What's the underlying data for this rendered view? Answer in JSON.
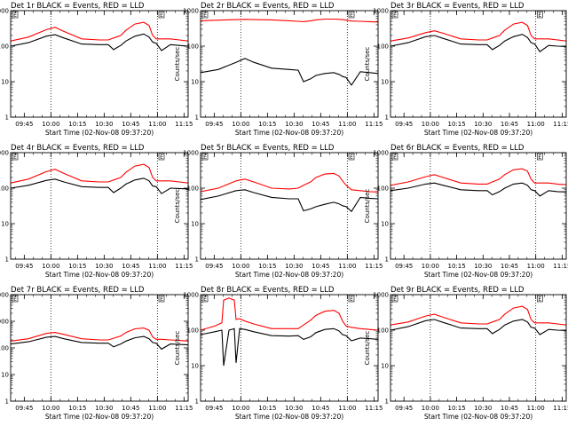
{
  "colors": {
    "events": "#000000",
    "lld": "#ff0000",
    "marker": "#000000"
  },
  "shared": {
    "ylabel": "Counts/sec",
    "xlabel": "Start Time (02-Nov-08 09:37:20)",
    "xticks": [
      "09:45",
      "10:00",
      "10:15",
      "10:30",
      "10:45",
      "11:00",
      "11:15"
    ],
    "xtick_minutes": [
      7.67,
      22.67,
      37.67,
      52.67,
      67.67,
      82.67,
      97.67
    ],
    "xlim_minutes": [
      0,
      100
    ],
    "ylog": true,
    "dotted_lines_minutes": [
      22.67,
      82.67
    ],
    "flag_letter": "E"
  },
  "chart_data": [
    {
      "type": "line",
      "title": "Det 1r BLACK = Events, RED = LLD",
      "ylim": [
        1,
        1000
      ],
      "yticks": [
        "1",
        "10",
        "100",
        "1000"
      ],
      "x": [
        0,
        10,
        20,
        25,
        30,
        40,
        50,
        55,
        58,
        62,
        65,
        70,
        75,
        78,
        80,
        82,
        85,
        90,
        95,
        100
      ],
      "series": [
        {
          "name": "Events",
          "values": [
            100,
            125,
            190,
            210,
            170,
            115,
            110,
            110,
            80,
            105,
            140,
            190,
            220,
            180,
            130,
            120,
            75,
            110,
            105,
            100
          ]
        },
        {
          "name": "LLD",
          "values": [
            140,
            180,
            290,
            340,
            260,
            160,
            150,
            150,
            170,
            200,
            280,
            420,
            470,
            380,
            200,
            160,
            160,
            160,
            150,
            140
          ]
        }
      ]
    },
    {
      "type": "line",
      "title": "Det 2r BLACK = Events, RED = LLD",
      "ylim": [
        1,
        1000
      ],
      "yticks": [
        "1",
        "10",
        "100",
        "1000"
      ],
      "x": [
        0,
        10,
        20,
        25,
        30,
        40,
        50,
        55,
        58,
        62,
        65,
        70,
        75,
        78,
        80,
        82,
        85,
        90,
        95,
        100
      ],
      "series": [
        {
          "name": "Events",
          "values": [
            18,
            22,
            35,
            45,
            35,
            24,
            22,
            21,
            10,
            12,
            15,
            17,
            18,
            16,
            14,
            13,
            8,
            19,
            18,
            17
          ]
        },
        {
          "name": "LLD",
          "values": [
            520,
            540,
            560,
            570,
            560,
            550,
            520,
            500,
            490,
            520,
            550,
            580,
            580,
            570,
            560,
            540,
            510,
            500,
            490,
            480
          ]
        }
      ]
    },
    {
      "type": "line",
      "title": "Det 3r BLACK = Events, RED = LLD",
      "ylim": [
        1,
        1000
      ],
      "yticks": [
        "1",
        "10",
        "100",
        "1000"
      ],
      "x": [
        0,
        10,
        20,
        25,
        30,
        40,
        50,
        55,
        58,
        62,
        65,
        70,
        75,
        78,
        80,
        82,
        85,
        90,
        95,
        100
      ],
      "series": [
        {
          "name": "Events",
          "values": [
            100,
            125,
            185,
            200,
            165,
            115,
            110,
            110,
            80,
            105,
            140,
            185,
            215,
            175,
            125,
            115,
            70,
            105,
            100,
            98
          ]
        },
        {
          "name": "LLD",
          "values": [
            140,
            170,
            240,
            270,
            230,
            160,
            150,
            150,
            170,
            200,
            280,
            420,
            470,
            380,
            200,
            160,
            160,
            160,
            150,
            140
          ]
        }
      ]
    },
    {
      "type": "line",
      "title": "Det 4r BLACK = Events, RED = LLD",
      "ylim": [
        1,
        1000
      ],
      "yticks": [
        "1",
        "10",
        "100",
        "1000"
      ],
      "x": [
        0,
        10,
        20,
        25,
        30,
        40,
        50,
        55,
        58,
        62,
        65,
        70,
        75,
        78,
        80,
        82,
        85,
        90,
        95,
        100
      ],
      "series": [
        {
          "name": "Events",
          "values": [
            100,
            120,
            165,
            180,
            150,
            110,
            105,
            105,
            75,
            100,
            130,
            170,
            190,
            160,
            115,
            110,
            70,
            100,
            98,
            95
          ]
        },
        {
          "name": "LLD",
          "values": [
            140,
            180,
            290,
            340,
            260,
            160,
            150,
            150,
            170,
            200,
            280,
            420,
            470,
            380,
            200,
            160,
            160,
            160,
            150,
            140
          ]
        }
      ]
    },
    {
      "type": "line",
      "title": "Det 5r BLACK = Events, RED = LLD",
      "ylim": [
        1,
        1000
      ],
      "yticks": [
        "1",
        "10",
        "100",
        "1000"
      ],
      "x": [
        0,
        10,
        20,
        25,
        30,
        40,
        50,
        55,
        58,
        62,
        65,
        70,
        75,
        78,
        80,
        82,
        85,
        90,
        95,
        100
      ],
      "series": [
        {
          "name": "Events",
          "values": [
            48,
            60,
            85,
            90,
            75,
            55,
            50,
            50,
            23,
            26,
            30,
            35,
            40,
            36,
            32,
            30,
            22,
            55,
            52,
            50
          ]
        },
        {
          "name": "LLD",
          "values": [
            80,
            100,
            160,
            180,
            150,
            100,
            95,
            100,
            120,
            150,
            200,
            250,
            260,
            220,
            160,
            120,
            90,
            85,
            80,
            78
          ]
        }
      ]
    },
    {
      "type": "line",
      "title": "Det 6r BLACK = Events, RED = LLD",
      "ylim": [
        1,
        1000
      ],
      "yticks": [
        "1",
        "10",
        "100",
        "1000"
      ],
      "x": [
        0,
        10,
        20,
        25,
        30,
        40,
        50,
        55,
        58,
        62,
        65,
        70,
        75,
        78,
        80,
        82,
        85,
        90,
        95,
        100
      ],
      "series": [
        {
          "name": "Events",
          "values": [
            85,
            100,
            130,
            140,
            120,
            90,
            85,
            85,
            65,
            80,
            100,
            130,
            140,
            120,
            90,
            85,
            60,
            85,
            80,
            78
          ]
        },
        {
          "name": "LLD",
          "values": [
            120,
            150,
            210,
            240,
            200,
            140,
            130,
            130,
            150,
            180,
            240,
            330,
            350,
            300,
            180,
            140,
            140,
            140,
            130,
            125
          ]
        }
      ]
    },
    {
      "type": "line",
      "title": "Det 7r BLACK = Events, RED = LLD",
      "ylim": [
        1,
        10000
      ],
      "yticks": [
        "1",
        "10",
        "100",
        "1000",
        "10000"
      ],
      "x": [
        0,
        10,
        20,
        25,
        30,
        40,
        50,
        55,
        58,
        62,
        65,
        70,
        75,
        78,
        80,
        82,
        85,
        90,
        95,
        100
      ],
      "series": [
        {
          "name": "Events",
          "values": [
            140,
            170,
            250,
            270,
            220,
            160,
            150,
            150,
            110,
            140,
            180,
            240,
            270,
            220,
            160,
            150,
            90,
            140,
            135,
            130
          ]
        },
        {
          "name": "LLD",
          "values": [
            180,
            220,
            350,
            380,
            320,
            220,
            200,
            200,
            230,
            280,
            380,
            520,
            560,
            460,
            260,
            210,
            210,
            200,
            190,
            180
          ]
        }
      ]
    },
    {
      "type": "line",
      "title": "Det 8r BLACK = Events, RED = LLD",
      "ylim": [
        1,
        1000
      ],
      "yticks": [
        "1",
        "10",
        "100",
        "1000"
      ],
      "x": [
        0,
        8,
        12,
        13,
        16,
        19,
        20,
        22,
        25,
        30,
        40,
        50,
        55,
        58,
        62,
        65,
        70,
        75,
        78,
        80,
        82,
        85,
        90,
        95,
        100
      ],
      "series": [
        {
          "name": "Events",
          "values": [
            75,
            90,
            100,
            10,
            100,
            110,
            12,
            110,
            105,
            90,
            70,
            68,
            70,
            55,
            65,
            85,
            105,
            110,
            95,
            75,
            70,
            50,
            60,
            58,
            55
          ]
        },
        {
          "name": "LLD",
          "values": [
            100,
            130,
            160,
            700,
            800,
            700,
            200,
            210,
            180,
            150,
            110,
            110,
            110,
            140,
            190,
            260,
            340,
            360,
            300,
            180,
            130,
            120,
            110,
            105,
            100
          ]
        }
      ]
    },
    {
      "type": "line",
      "title": "Det 9r BLACK = Events, RED = LLD",
      "ylim": [
        1,
        1000
      ],
      "yticks": [
        "1",
        "10",
        "100",
        "1000"
      ],
      "x": [
        0,
        10,
        20,
        25,
        30,
        40,
        50,
        55,
        58,
        62,
        65,
        70,
        75,
        78,
        80,
        82,
        85,
        90,
        95,
        100
      ],
      "series": [
        {
          "name": "Events",
          "values": [
            100,
            125,
            185,
            200,
            165,
            115,
            110,
            110,
            80,
            105,
            140,
            180,
            200,
            170,
            120,
            115,
            75,
            105,
            100,
            98
          ]
        },
        {
          "name": "LLD",
          "values": [
            140,
            170,
            250,
            280,
            230,
            160,
            150,
            150,
            170,
            200,
            280,
            420,
            470,
            380,
            200,
            160,
            160,
            160,
            150,
            140
          ]
        }
      ]
    }
  ]
}
